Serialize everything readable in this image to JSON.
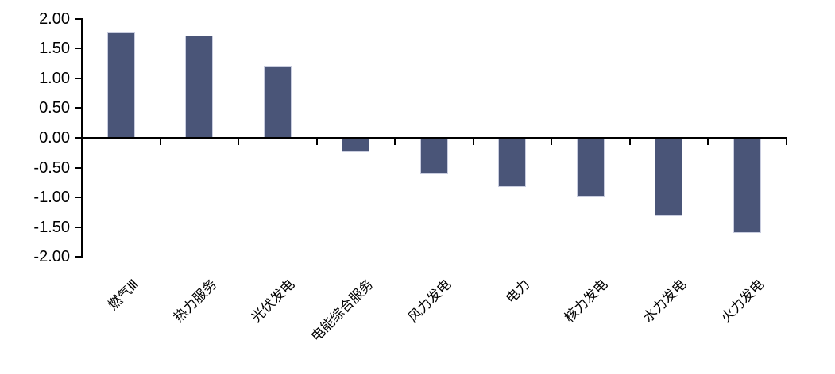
{
  "chart_data": {
    "type": "bar",
    "title": "",
    "xlabel": "",
    "ylabel": "",
    "categories": [
      "燃气Ⅲ",
      "热力服务",
      "光伏发电",
      "电能综合服务",
      "风力发电",
      "电力",
      "核力发电",
      "水力发电",
      "火力发电"
    ],
    "values": [
      1.77,
      1.72,
      1.21,
      -0.24,
      -0.6,
      -0.83,
      -0.99,
      -1.31,
      -1.6
    ],
    "ylim": [
      -2.0,
      2.0
    ],
    "ytick_step": 0.5,
    "ytick_labels": [
      "2.00",
      "1.50",
      "1.00",
      "0.50",
      "0.00",
      "-0.50",
      "-1.00",
      "-1.50",
      "-2.00"
    ],
    "grid": false,
    "legend": "none",
    "x_label_rotation_deg": -45,
    "colors": {
      "bar_fill": "#4A5578",
      "bar_border": "#C9CDDF",
      "axis": "#000000",
      "text": "#000000",
      "background": "#FFFFFF"
    }
  }
}
